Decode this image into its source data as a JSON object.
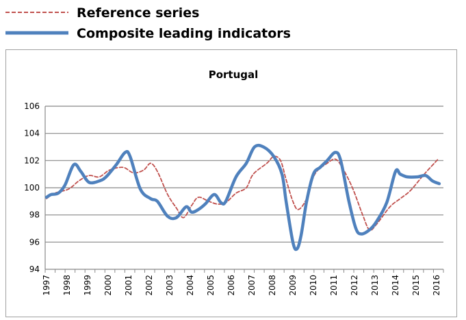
{
  "chart_data": {
    "type": "line",
    "title": "Portugal",
    "xlabel": "",
    "ylabel": "",
    "xlim": [
      1997,
      2016.2
    ],
    "ylim": [
      94,
      106
    ],
    "yticks": [
      "94",
      "96",
      "98",
      "100",
      "102",
      "104",
      "106"
    ],
    "xticks": [
      "1997",
      "1998",
      "1999",
      "2000",
      "2001",
      "2002",
      "2003",
      "2004",
      "2005",
      "2006",
      "2007",
      "2008",
      "2009",
      "2010",
      "2011",
      "2012",
      "2013",
      "2014",
      "2015",
      "2016"
    ],
    "grid": "horizontal",
    "legend_position": "top-left, outside",
    "series": [
      {
        "name": "Reference series",
        "style": "dashed",
        "color": "#c0504d",
        "x": [
          1997.0,
          1997.4,
          1998.07,
          1998.57,
          1999.07,
          1999.57,
          2000.07,
          2000.73,
          2001.23,
          2001.73,
          2002.07,
          2002.4,
          2002.9,
          2003.33,
          2003.67,
          2004.07,
          2004.4,
          2004.9,
          2005.33,
          2005.73,
          2006.23,
          2006.73,
          2007.07,
          2007.73,
          2008.07,
          2008.4,
          2008.67,
          2009.0,
          2009.27,
          2009.67,
          2010.07,
          2010.67,
          2011.07,
          2011.4,
          2011.9,
          2012.4,
          2012.73,
          2013.07,
          2013.73,
          2014.23,
          2014.73,
          2015.4,
          2016.07
        ],
        "y": [
          99.2,
          99.6,
          99.9,
          100.5,
          100.9,
          100.8,
          101.3,
          101.5,
          101.1,
          101.3,
          101.8,
          101.2,
          99.5,
          98.5,
          97.8,
          98.7,
          99.3,
          99.0,
          98.8,
          98.9,
          99.6,
          100.0,
          101.0,
          101.8,
          102.3,
          102.0,
          100.6,
          99.0,
          98.4,
          99.2,
          101.0,
          101.8,
          102.1,
          101.5,
          100.0,
          98.0,
          96.9,
          97.3,
          98.6,
          99.2,
          99.8,
          101.0,
          102.1
        ]
      },
      {
        "name": "Composite leading indicators",
        "style": "solid",
        "color": "#4f81bd",
        "x": [
          1997.0,
          1997.23,
          1997.57,
          1997.9,
          1998.33,
          1998.67,
          1999.07,
          1999.57,
          1999.9,
          2000.4,
          2000.83,
          2001.07,
          2001.57,
          2002.07,
          2002.4,
          2002.9,
          2003.33,
          2003.8,
          2004.07,
          2004.4,
          2004.73,
          2005.17,
          2005.5,
          2005.73,
          2006.23,
          2006.73,
          2007.13,
          2007.57,
          2008.07,
          2008.47,
          2008.67,
          2009.0,
          2009.2,
          2009.4,
          2009.67,
          2010.0,
          2010.33,
          2010.67,
          2011.07,
          2011.33,
          2011.73,
          2012.07,
          2012.33,
          2012.73,
          2013.07,
          2013.57,
          2014.0,
          2014.23,
          2014.57,
          2015.07,
          2015.47,
          2015.8,
          2016.13
        ],
        "y": [
          99.3,
          99.5,
          99.6,
          100.2,
          101.7,
          101.2,
          100.4,
          100.5,
          100.8,
          101.7,
          102.6,
          102.3,
          99.9,
          99.2,
          99.0,
          97.9,
          97.8,
          98.6,
          98.2,
          98.4,
          98.8,
          99.5,
          98.9,
          99.0,
          100.8,
          101.8,
          103.0,
          103.0,
          102.3,
          101.0,
          99.0,
          96.0,
          95.5,
          96.5,
          99.0,
          101.0,
          101.5,
          102.0,
          102.6,
          102.0,
          99.0,
          97.0,
          96.6,
          96.9,
          97.5,
          98.9,
          101.2,
          101.0,
          100.8,
          100.8,
          100.9,
          100.5,
          100.3
        ]
      }
    ]
  }
}
